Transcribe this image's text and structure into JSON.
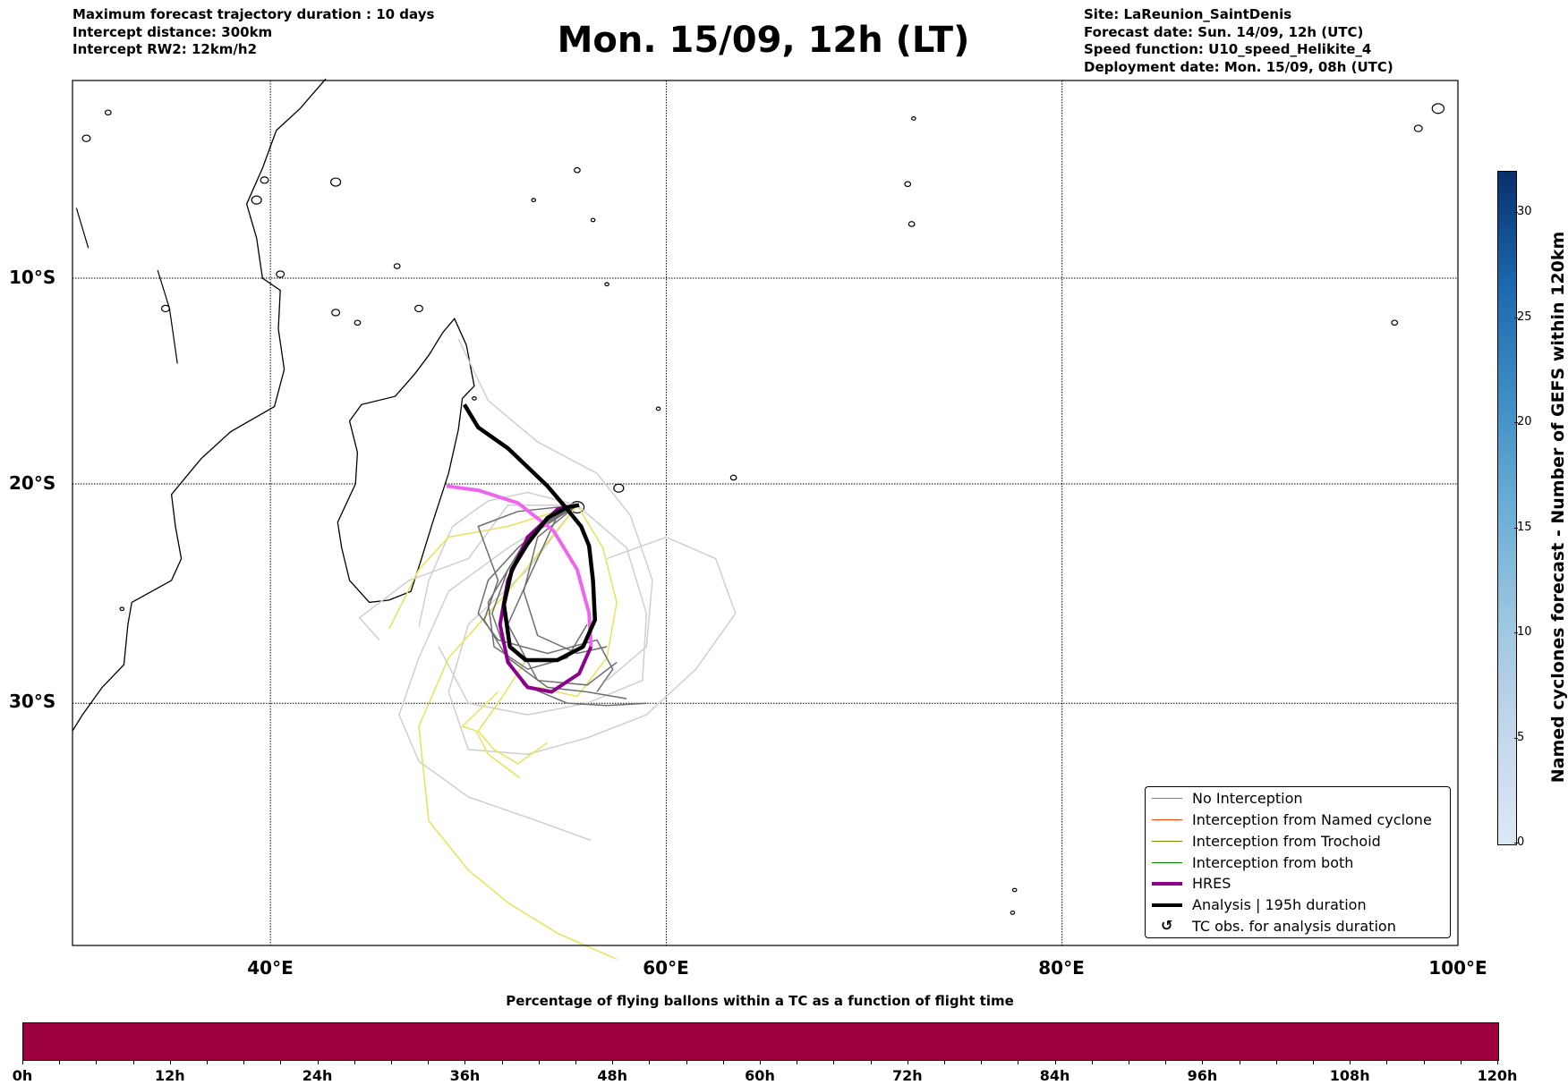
{
  "header": {
    "left": [
      "Maximum forecast trajectory duration : 10 days",
      "Intercept distance: 300km",
      "Intercept RW2: 12km/h2"
    ],
    "title": "Mon. 15/09, 12h (LT)",
    "right": [
      "Site: LaReunion_SaintDenis",
      "Forecast date: Sun. 14/09, 12h (UTC)",
      "Speed function: U10_speed_Helikite_4",
      "Deployment date: Mon. 15/09, 08h (UTC)"
    ]
  },
  "map": {
    "lon_range": [
      30,
      100
    ],
    "lat_range": [
      -40.5,
      0
    ],
    "lat_labels": [
      {
        "lat": -10,
        "text": "10°S"
      },
      {
        "lat": -20,
        "text": "20°S"
      },
      {
        "lat": -30,
        "text": "30°S"
      }
    ],
    "lon_labels": [
      {
        "lon": 40,
        "text": "40°E"
      },
      {
        "lon": 60,
        "text": "60°E"
      },
      {
        "lon": 80,
        "text": "80°E"
      },
      {
        "lon": 100,
        "text": "100°E"
      }
    ],
    "analysis": [
      [
        49.8,
        -16.2
      ],
      [
        50.5,
        -17.3
      ],
      [
        52,
        -18.3
      ],
      [
        53,
        -19.2
      ],
      [
        54,
        -20.1
      ],
      [
        55,
        -21.2
      ],
      [
        55.7,
        -22
      ],
      [
        56.1,
        -22.9
      ],
      [
        56.3,
        -24.5
      ],
      [
        56.4,
        -26.3
      ],
      [
        55.8,
        -27.5
      ],
      [
        54.5,
        -28.1
      ],
      [
        52.9,
        -28.1
      ],
      [
        52.1,
        -27.5
      ],
      [
        51.8,
        -25.6
      ],
      [
        52.2,
        -24
      ],
      [
        53,
        -22.8
      ],
      [
        54,
        -21.6
      ],
      [
        55,
        -21.1
      ],
      [
        55.6,
        -21
      ]
    ],
    "hres_early": [
      [
        48.9,
        -20.1
      ],
      [
        50.5,
        -20.3
      ],
      [
        52.5,
        -20.9
      ],
      [
        54.3,
        -22.2
      ],
      [
        55.5,
        -24
      ],
      [
        56.1,
        -26
      ],
      [
        56.2,
        -27.5
      ]
    ],
    "hres_late": [
      [
        56.2,
        -27.5
      ],
      [
        55.6,
        -28.7
      ],
      [
        54.2,
        -29.5
      ],
      [
        53,
        -29.3
      ],
      [
        52,
        -28.2
      ],
      [
        51.6,
        -26.5
      ],
      [
        52,
        -24.5
      ],
      [
        53,
        -22.5
      ],
      [
        54.5,
        -21.2
      ],
      [
        55.5,
        -21
      ]
    ],
    "ensemble_dark": [
      [
        [
          55.5,
          -21
        ],
        [
          53.5,
          -22
        ],
        [
          52,
          -24
        ],
        [
          51.2,
          -26
        ],
        [
          52,
          -28
        ],
        [
          54,
          -29.3
        ],
        [
          56,
          -29.5
        ],
        [
          58,
          -29.8
        ]
      ],
      [
        [
          55.5,
          -21
        ],
        [
          53,
          -22.5
        ],
        [
          51,
          -25.5
        ],
        [
          51.3,
          -27.5
        ],
        [
          53,
          -28.5
        ],
        [
          55,
          -28
        ],
        [
          56,
          -26.5
        ]
      ],
      [
        [
          55.5,
          -21
        ],
        [
          54,
          -21.8
        ],
        [
          52.5,
          -23
        ],
        [
          51,
          -24.5
        ],
        [
          50.5,
          -26
        ],
        [
          51.5,
          -27.2
        ],
        [
          54,
          -27.8
        ],
        [
          56.5,
          -27.2
        ],
        [
          57.3,
          -28.5
        ],
        [
          56.5,
          -29.5
        ]
      ],
      [
        [
          55.5,
          -21
        ],
        [
          52.5,
          -21.3
        ],
        [
          50.5,
          -22
        ],
        [
          51.5,
          -24.5
        ],
        [
          50.8,
          -26.3
        ],
        [
          52.8,
          -29.2
        ],
        [
          55,
          -30
        ],
        [
          57,
          -30.1
        ],
        [
          59,
          -30
        ]
      ],
      [
        [
          55.5,
          -21
        ],
        [
          53.5,
          -22.5
        ],
        [
          52.8,
          -25
        ],
        [
          53.5,
          -27
        ],
        [
          55.5,
          -27.8
        ],
        [
          57,
          -27.5
        ]
      ],
      [
        [
          55.5,
          -21
        ],
        [
          54.5,
          -21.5
        ],
        [
          53,
          -24.5
        ],
        [
          52,
          -26.5
        ],
        [
          53.5,
          -29
        ],
        [
          56,
          -29.2
        ],
        [
          57.5,
          -28.2
        ]
      ]
    ],
    "ensemble_light": [
      [
        [
          55.5,
          -21
        ],
        [
          53,
          -20.4
        ],
        [
          51,
          -20.8
        ],
        [
          49.2,
          -22
        ],
        [
          48,
          -24.5
        ],
        [
          47.5,
          -26.6
        ]
      ],
      [
        [
          55.5,
          -21
        ],
        [
          52,
          -21
        ],
        [
          50,
          -23.5
        ],
        [
          47,
          -24.5
        ],
        [
          44.5,
          -26.2
        ],
        [
          45.5,
          -27.2
        ]
      ],
      [
        [
          55.5,
          -21
        ],
        [
          52,
          -23
        ],
        [
          49,
          -25
        ],
        [
          47.5,
          -28
        ],
        [
          46.5,
          -30.5
        ],
        [
          47.5,
          -32.5
        ],
        [
          50,
          -34
        ],
        [
          53.5,
          -35
        ],
        [
          56.2,
          -35.8
        ]
      ],
      [
        [
          55.5,
          -21
        ],
        [
          53,
          -24
        ],
        [
          50,
          -26.5
        ],
        [
          49,
          -29.5
        ],
        [
          50,
          -32
        ],
        [
          53,
          -32.2
        ],
        [
          56,
          -31.5
        ],
        [
          59,
          -30.5
        ],
        [
          61.5,
          -28.5
        ],
        [
          63.5,
          -26
        ],
        [
          62.5,
          -23.5
        ],
        [
          60,
          -22.5
        ],
        [
          57,
          -23.5
        ]
      ],
      [
        [
          55.5,
          -21
        ],
        [
          58,
          -23
        ],
        [
          59,
          -26
        ],
        [
          58.8,
          -29
        ],
        [
          56,
          -30
        ],
        [
          53,
          -30.5
        ],
        [
          50,
          -30
        ],
        [
          48.5,
          -27.5
        ]
      ],
      [
        [
          49.5,
          -13
        ],
        [
          51,
          -16
        ],
        [
          53.5,
          -18
        ],
        [
          56.5,
          -19.5
        ],
        [
          58.2,
          -21.5
        ],
        [
          59.3,
          -24.5
        ],
        [
          59,
          -27.5
        ],
        [
          57,
          -29
        ]
      ]
    ],
    "ensemble_yellow": [
      [
        [
          55.5,
          -21
        ],
        [
          52,
          -22
        ],
        [
          49,
          -22.5
        ],
        [
          47.5,
          -24
        ],
        [
          46,
          -26.7
        ]
      ],
      [
        [
          55.5,
          -21
        ],
        [
          56.8,
          -23
        ],
        [
          57.5,
          -25.5
        ],
        [
          57,
          -28
        ],
        [
          55.5,
          -29.7
        ],
        [
          53.5,
          -29.3
        ]
      ],
      [
        [
          53,
          -28
        ],
        [
          51.5,
          -30
        ],
        [
          50.5,
          -31.2
        ],
        [
          51.3,
          -32
        ],
        [
          52.5,
          -32.6
        ],
        [
          54,
          -31.7
        ]
      ],
      [
        [
          51.5,
          -29.5
        ],
        [
          49.7,
          -31
        ],
        [
          50.4,
          -31.2
        ],
        [
          51,
          -32.2
        ],
        [
          52.6,
          -33.2
        ]
      ],
      [
        [
          55.5,
          -21
        ],
        [
          52,
          -25
        ],
        [
          49,
          -28
        ],
        [
          47.5,
          -31
        ],
        [
          48,
          -35
        ],
        [
          50,
          -37
        ],
        [
          52,
          -38.3
        ],
        [
          54.5,
          -39.5
        ],
        [
          57.5,
          -40.5
        ]
      ]
    ]
  },
  "legend": {
    "items": [
      "No Interception",
      "Interception from Named cyclone",
      "Interception from Trochoid",
      "Interception from both",
      "HRES",
      "Analysis | 195h duration",
      "TC obs. for analysis duration"
    ],
    "colors": [
      "#808080",
      "#ff4500",
      "#808000",
      "#008000",
      "#8b008b",
      "#000000"
    ],
    "tc_symbol": "↺"
  },
  "colorbar": {
    "label": "Named cyclones forecast - Number of GEFS within 120km",
    "ticks": [
      "0",
      "5",
      "10",
      "15",
      "20",
      "25",
      "30"
    ],
    "max": 32
  },
  "time_bar": {
    "title": "Percentage of flying ballons within a TC as a function of flight time",
    "ticks": [
      "0h",
      "12h",
      "24h",
      "36h",
      "48h",
      "60h",
      "72h",
      "84h",
      "96h",
      "108h",
      "120h"
    ],
    "color": "#9c003d"
  }
}
